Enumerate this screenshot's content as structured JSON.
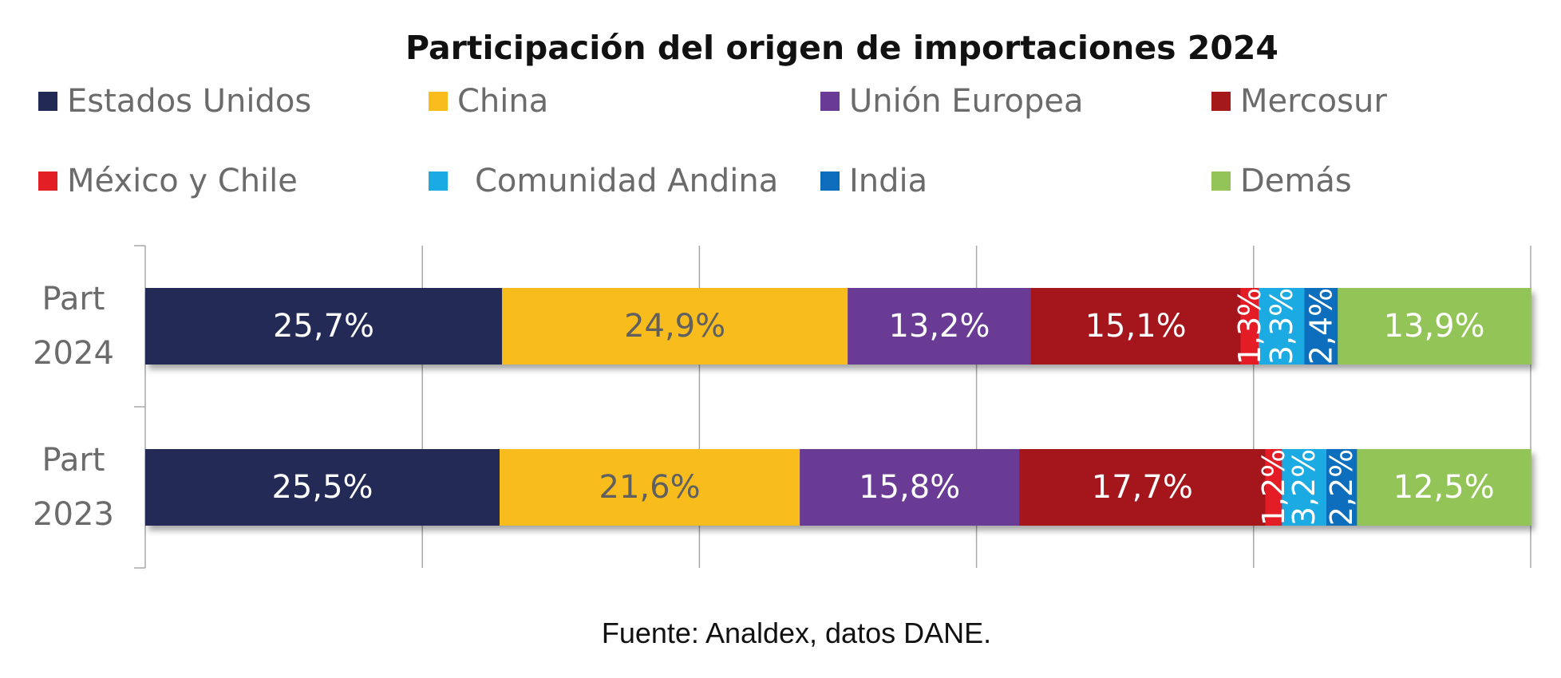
{
  "chart_data": {
    "type": "bar",
    "orientation": "horizontal",
    "stacked": "100%",
    "title": "Participación del origen de importaciones 2024",
    "categories": [
      "Part 2024",
      "Part 2023"
    ],
    "series": [
      {
        "name": "Estados Unidos",
        "color": "#202a55",
        "label_color": "#ffffff",
        "label_rotated": false,
        "values": [
          25.7,
          25.5
        ],
        "labels": [
          "25,7%",
          "25,5%"
        ]
      },
      {
        "name": "China",
        "color": "#f8bd1c",
        "label_color": "#606060",
        "label_rotated": false,
        "values": [
          24.9,
          21.6
        ],
        "labels": [
          "24,9%",
          "21,6%"
        ]
      },
      {
        "name": "Unión Europea",
        "color": "#6a3b94",
        "label_color": "#ffffff",
        "label_rotated": false,
        "values": [
          13.2,
          15.8
        ],
        "labels": [
          "13,2%",
          "15,8%"
        ]
      },
      {
        "name": "Mercosur",
        "color": "#a4191a",
        "label_color": "#ffffff",
        "label_rotated": false,
        "values": [
          15.1,
          17.7
        ],
        "labels": [
          "15,1%",
          "17,7%"
        ]
      },
      {
        "name": "México y Chile",
        "color": "#e31e25",
        "label_color": "#ffffff",
        "label_rotated": true,
        "values": [
          1.3,
          1.2
        ],
        "labels": [
          "1,3%",
          "1,2%"
        ]
      },
      {
        "name": "Comunidad Andina",
        "color": "#1caae3",
        "label_color": "#ffffff",
        "label_rotated": true,
        "values": [
          3.3,
          3.2
        ],
        "labels": [
          "3,3%",
          "3,2%"
        ]
      },
      {
        "name": "India",
        "color": "#0e6ebd",
        "label_color": "#ffffff",
        "label_rotated": true,
        "values": [
          2.4,
          2.2
        ],
        "labels": [
          "2,4%",
          "2,2%"
        ]
      },
      {
        "name": "Demás",
        "color": "#93c459",
        "label_color": "#ffffff",
        "label_rotated": false,
        "values": [
          13.9,
          12.5
        ],
        "labels": [
          "13,9%",
          "12,5%"
        ]
      }
    ],
    "xlim": [
      0,
      100
    ],
    "xtick_step": 20,
    "grid": true,
    "legend": "top",
    "source": "Fuente: Analdex, datos DANE."
  }
}
